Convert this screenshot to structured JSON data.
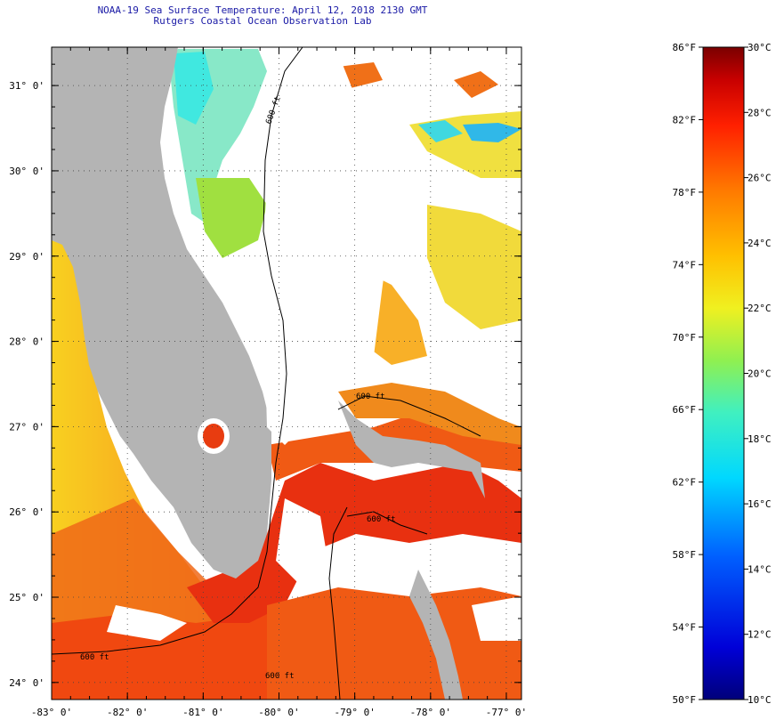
{
  "header": {
    "title_line1": "NOAA-19 Sea Surface Temperature:  April 12, 2018 2130 GMT",
    "title_line2": "Rutgers Coastal Ocean Observation Lab"
  },
  "map": {
    "lon_range": [
      -83,
      -76.8
    ],
    "lat_range": [
      23.8,
      31.45
    ],
    "lon_ticks": [
      {
        "value": -83,
        "label": "-83° 0'"
      },
      {
        "value": -82,
        "label": "-82° 0'"
      },
      {
        "value": -81,
        "label": "-81° 0'"
      },
      {
        "value": -80,
        "label": "-80° 0'"
      },
      {
        "value": -79,
        "label": "-79° 0'"
      },
      {
        "value": -78,
        "label": "-78° 0'"
      },
      {
        "value": -77,
        "label": "-77° 0'"
      }
    ],
    "lat_ticks": [
      {
        "value": 31,
        "label": "31° 0'"
      },
      {
        "value": 30,
        "label": "30° 0'"
      },
      {
        "value": 29,
        "label": "29° 0'"
      },
      {
        "value": 28,
        "label": "28° 0'"
      },
      {
        "value": 27,
        "label": "27° 0'"
      },
      {
        "value": 26,
        "label": "26° 0'"
      },
      {
        "value": 25,
        "label": "25° 0'"
      },
      {
        "value": 24,
        "label": "24° 0'"
      }
    ],
    "contour_label": "600 ft",
    "colors": {
      "land": "#b4b4b4",
      "cloud": "#ffffff",
      "warm": "#f06010",
      "hot": "#e02810",
      "orange": "#f8a020",
      "yellow": "#f0dc28",
      "green": "#a0e040",
      "cyan": "#40e8e0"
    }
  },
  "colorbar": {
    "fahrenheit_labels": [
      "86°F",
      "82°F",
      "78°F",
      "74°F",
      "70°F",
      "66°F",
      "62°F",
      "58°F",
      "54°F",
      "50°F"
    ],
    "celsius_labels": [
      "30°C",
      "28°C",
      "26°C",
      "24°C",
      "22°C",
      "20°C",
      "18°C",
      "16°C",
      "14°C",
      "12°C",
      "10°C"
    ],
    "f_range": [
      50,
      86
    ],
    "c_range": [
      10,
      30
    ]
  }
}
